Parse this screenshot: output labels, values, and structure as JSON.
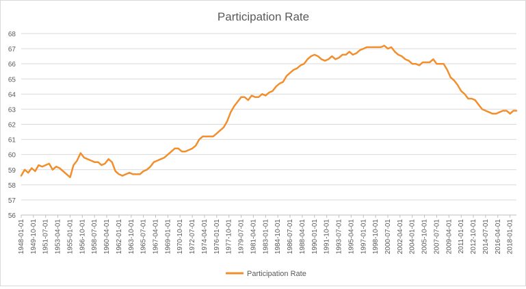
{
  "chart_data": {
    "type": "line",
    "title": "Participation Rate",
    "xlabel": "",
    "ylabel": "",
    "ylim": [
      56,
      68
    ],
    "y_ticks": [
      56,
      57,
      58,
      59,
      60,
      61,
      62,
      63,
      64,
      65,
      66,
      67,
      68
    ],
    "x_range": [
      "1948-01-01",
      "2018-12-01"
    ],
    "x_tick_labels": [
      "1948-01-01",
      "1949-10-01",
      "1951-07-01",
      "1953-04-01",
      "1955-01-01",
      "1956-10-01",
      "1958-07-01",
      "1960-04-01",
      "1962-01-01",
      "1963-10-01",
      "1965-07-01",
      "1967-04-01",
      "1969-01-01",
      "1970-10-01",
      "1972-07-01",
      "1974-04-01",
      "1976-01-01",
      "1977-10-01",
      "1979-07-01",
      "1981-04-01",
      "1983-01-01",
      "1984-10-01",
      "1986-07-01",
      "1988-04-01",
      "1990-01-01",
      "1991-10-01",
      "1993-07-01",
      "1995-04-01",
      "1997-01-01",
      "1998-10-01",
      "2000-07-01",
      "2002-04-01",
      "2004-01-01",
      "2005-10-01",
      "2007-07-01",
      "2009-04-01",
      "2011-01-01",
      "2012-10-01",
      "2014-07-01",
      "2016-04-01",
      "2018-01-01"
    ],
    "grid": "horizontal",
    "legend_position": "bottom",
    "series": [
      {
        "name": "Participation Rate",
        "color": "#f28e2b",
        "points": [
          [
            "1948-01-01",
            58.6
          ],
          [
            "1948-07-01",
            59.0
          ],
          [
            "1949-01-01",
            58.8
          ],
          [
            "1949-07-01",
            59.1
          ],
          [
            "1950-01-01",
            58.9
          ],
          [
            "1950-07-01",
            59.3
          ],
          [
            "1951-01-01",
            59.2
          ],
          [
            "1951-07-01",
            59.3
          ],
          [
            "1952-01-01",
            59.4
          ],
          [
            "1952-07-01",
            59.0
          ],
          [
            "1953-01-01",
            59.2
          ],
          [
            "1953-07-01",
            59.1
          ],
          [
            "1954-01-01",
            58.9
          ],
          [
            "1954-07-01",
            58.7
          ],
          [
            "1955-01-01",
            58.5
          ],
          [
            "1955-07-01",
            59.3
          ],
          [
            "1956-01-01",
            59.6
          ],
          [
            "1956-07-01",
            60.1
          ],
          [
            "1957-01-01",
            59.8
          ],
          [
            "1957-07-01",
            59.7
          ],
          [
            "1958-01-01",
            59.6
          ],
          [
            "1958-07-01",
            59.5
          ],
          [
            "1959-01-01",
            59.5
          ],
          [
            "1959-07-01",
            59.3
          ],
          [
            "1960-01-01",
            59.4
          ],
          [
            "1960-07-01",
            59.7
          ],
          [
            "1961-01-01",
            59.5
          ],
          [
            "1961-07-01",
            58.9
          ],
          [
            "1962-01-01",
            58.7
          ],
          [
            "1962-07-01",
            58.6
          ],
          [
            "1963-01-01",
            58.7
          ],
          [
            "1963-07-01",
            58.8
          ],
          [
            "1964-01-01",
            58.7
          ],
          [
            "1964-07-01",
            58.7
          ],
          [
            "1965-01-01",
            58.7
          ],
          [
            "1965-07-01",
            58.9
          ],
          [
            "1966-01-01",
            59.0
          ],
          [
            "1966-07-01",
            59.2
          ],
          [
            "1967-01-01",
            59.5
          ],
          [
            "1967-07-01",
            59.6
          ],
          [
            "1968-01-01",
            59.7
          ],
          [
            "1968-07-01",
            59.8
          ],
          [
            "1969-01-01",
            60.0
          ],
          [
            "1969-07-01",
            60.2
          ],
          [
            "1970-01-01",
            60.4
          ],
          [
            "1970-07-01",
            60.4
          ],
          [
            "1971-01-01",
            60.2
          ],
          [
            "1971-07-01",
            60.2
          ],
          [
            "1972-01-01",
            60.3
          ],
          [
            "1972-07-01",
            60.4
          ],
          [
            "1973-01-01",
            60.6
          ],
          [
            "1973-07-01",
            61.0
          ],
          [
            "1974-01-01",
            61.2
          ],
          [
            "1974-07-01",
            61.2
          ],
          [
            "1975-01-01",
            61.2
          ],
          [
            "1975-07-01",
            61.2
          ],
          [
            "1976-01-01",
            61.4
          ],
          [
            "1976-07-01",
            61.6
          ],
          [
            "1977-01-01",
            61.8
          ],
          [
            "1977-07-01",
            62.2
          ],
          [
            "1978-01-01",
            62.8
          ],
          [
            "1978-07-01",
            63.2
          ],
          [
            "1979-01-01",
            63.5
          ],
          [
            "1979-07-01",
            63.8
          ],
          [
            "1980-01-01",
            63.8
          ],
          [
            "1980-07-01",
            63.6
          ],
          [
            "1981-01-01",
            63.9
          ],
          [
            "1981-07-01",
            63.8
          ],
          [
            "1982-01-01",
            63.8
          ],
          [
            "1982-07-01",
            64.0
          ],
          [
            "1983-01-01",
            63.9
          ],
          [
            "1983-07-01",
            64.1
          ],
          [
            "1984-01-01",
            64.2
          ],
          [
            "1984-07-01",
            64.5
          ],
          [
            "1985-01-01",
            64.7
          ],
          [
            "1985-07-01",
            64.8
          ],
          [
            "1986-01-01",
            65.2
          ],
          [
            "1986-07-01",
            65.4
          ],
          [
            "1987-01-01",
            65.6
          ],
          [
            "1987-07-01",
            65.7
          ],
          [
            "1988-01-01",
            65.9
          ],
          [
            "1988-07-01",
            66.0
          ],
          [
            "1989-01-01",
            66.3
          ],
          [
            "1989-07-01",
            66.5
          ],
          [
            "1990-01-01",
            66.6
          ],
          [
            "1990-07-01",
            66.5
          ],
          [
            "1991-01-01",
            66.3
          ],
          [
            "1991-07-01",
            66.2
          ],
          [
            "1992-01-01",
            66.3
          ],
          [
            "1992-07-01",
            66.5
          ],
          [
            "1993-01-01",
            66.3
          ],
          [
            "1993-07-01",
            66.4
          ],
          [
            "1994-01-01",
            66.6
          ],
          [
            "1994-07-01",
            66.6
          ],
          [
            "1995-01-01",
            66.8
          ],
          [
            "1995-07-01",
            66.6
          ],
          [
            "1996-01-01",
            66.7
          ],
          [
            "1996-07-01",
            66.9
          ],
          [
            "1997-01-01",
            67.0
          ],
          [
            "1997-07-01",
            67.1
          ],
          [
            "1998-01-01",
            67.1
          ],
          [
            "1998-07-01",
            67.1
          ],
          [
            "1999-01-01",
            67.1
          ],
          [
            "1999-07-01",
            67.1
          ],
          [
            "2000-01-01",
            67.2
          ],
          [
            "2000-07-01",
            67.0
          ],
          [
            "2001-01-01",
            67.1
          ],
          [
            "2001-07-01",
            66.8
          ],
          [
            "2002-01-01",
            66.6
          ],
          [
            "2002-07-01",
            66.5
          ],
          [
            "2003-01-01",
            66.3
          ],
          [
            "2003-07-01",
            66.2
          ],
          [
            "2004-01-01",
            66.0
          ],
          [
            "2004-07-01",
            66.0
          ],
          [
            "2005-01-01",
            65.9
          ],
          [
            "2005-07-01",
            66.1
          ],
          [
            "2006-01-01",
            66.1
          ],
          [
            "2006-07-01",
            66.1
          ],
          [
            "2007-01-01",
            66.3
          ],
          [
            "2007-07-01",
            66.0
          ],
          [
            "2008-01-01",
            66.0
          ],
          [
            "2008-07-01",
            66.0
          ],
          [
            "2009-01-01",
            65.6
          ],
          [
            "2009-07-01",
            65.1
          ],
          [
            "2010-01-01",
            64.9
          ],
          [
            "2010-07-01",
            64.6
          ],
          [
            "2011-01-01",
            64.2
          ],
          [
            "2011-07-01",
            64.0
          ],
          [
            "2012-01-01",
            63.7
          ],
          [
            "2012-07-01",
            63.7
          ],
          [
            "2013-01-01",
            63.6
          ],
          [
            "2013-07-01",
            63.3
          ],
          [
            "2014-01-01",
            63.0
          ],
          [
            "2014-07-01",
            62.9
          ],
          [
            "2015-01-01",
            62.8
          ],
          [
            "2015-07-01",
            62.7
          ],
          [
            "2016-01-01",
            62.7
          ],
          [
            "2016-07-01",
            62.8
          ],
          [
            "2017-01-01",
            62.9
          ],
          [
            "2017-07-01",
            62.9
          ],
          [
            "2018-01-01",
            62.7
          ],
          [
            "2018-07-01",
            62.9
          ],
          [
            "2018-12-01",
            62.9
          ]
        ]
      }
    ]
  }
}
